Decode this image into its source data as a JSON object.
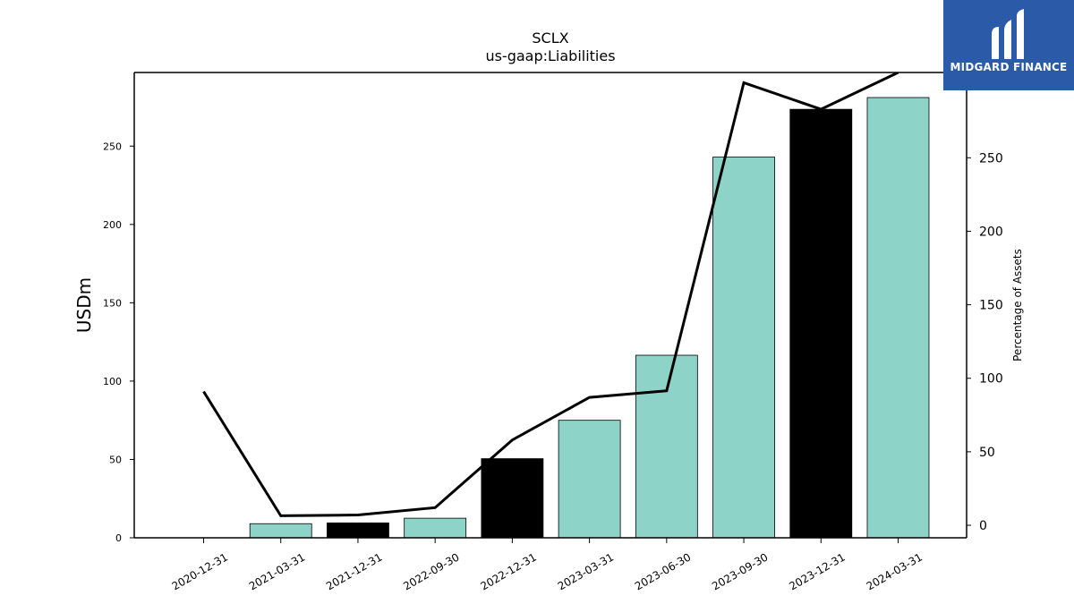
{
  "chart_data": {
    "type": "bar",
    "title": "SCLX",
    "subtitle": "us-gaap:Liabilities",
    "ylabel": "USDm",
    "y2label": "Percentage of Assets",
    "categories": [
      "2020-12-31",
      "2021-03-31",
      "2021-12-31",
      "2022-09-30",
      "2022-12-31",
      "2023-03-31",
      "2023-06-30",
      "2023-09-30",
      "2023-12-31",
      "2024-03-31"
    ],
    "series": [
      {
        "type": "bar",
        "axis": "left",
        "values": [
          0,
          9,
          9.5,
          12.5,
          50.5,
          75,
          116.5,
          243,
          273.5,
          281
        ],
        "colors": [
          "#8dd3c7",
          "#8dd3c7",
          "#000000",
          "#8dd3c7",
          "#000000",
          "#8dd3c7",
          "#8dd3c7",
          "#8dd3c7",
          "#000000",
          "#8dd3c7"
        ]
      },
      {
        "type": "line",
        "axis": "right",
        "color": "#000000",
        "values": [
          91,
          6.5,
          7,
          12,
          58,
          87,
          91.5,
          301,
          283,
          308
        ]
      }
    ],
    "ylim": [
      0,
      297
    ],
    "yticks": [
      0,
      50,
      100,
      150,
      200,
      250
    ],
    "y2lim": [
      -8.5,
      308
    ],
    "y2ticks": [
      0,
      50,
      100,
      150,
      200,
      250
    ],
    "grid": false
  },
  "logo": {
    "text": "MIDGARD FINANCE",
    "color": "#2a5aa8"
  }
}
